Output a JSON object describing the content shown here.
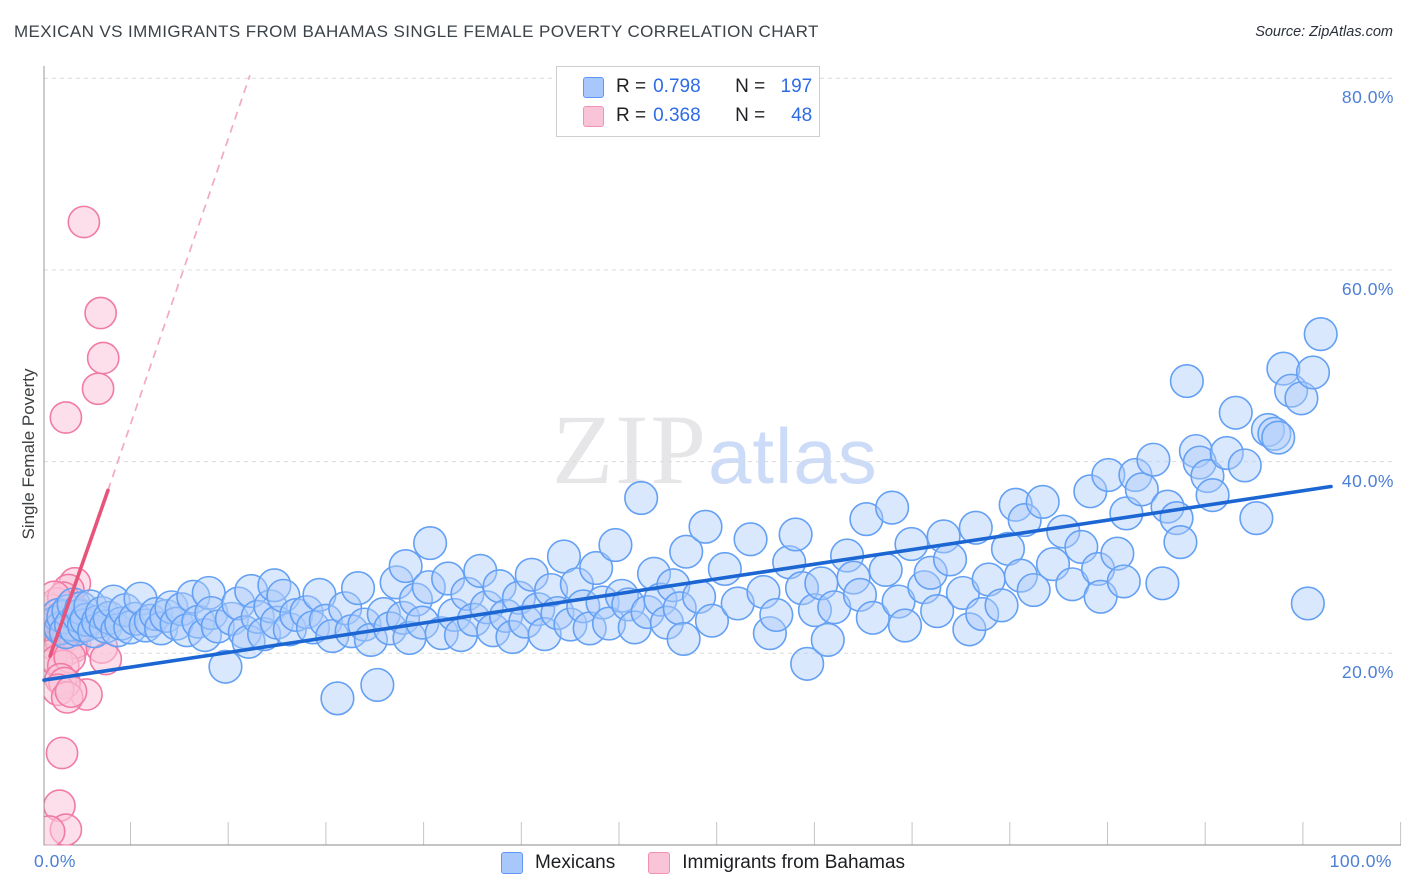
{
  "header": {
    "title": "MEXICAN VS IMMIGRANTS FROM BAHAMAS SINGLE FEMALE POVERTY CORRELATION CHART",
    "source": "Source: ZipAtlas.com"
  },
  "legend_box": {
    "rows": [
      {
        "series": "mexicans",
        "r_label": "R =",
        "r_value": "0.798",
        "n_label": "N =",
        "n_value": "197"
      },
      {
        "series": "bahamas",
        "r_label": "R =",
        "r_value": "0.368",
        "n_label": "N =",
        "n_value": "48"
      }
    ]
  },
  "watermark": {
    "part1": "ZIP",
    "part2": "atlas"
  },
  "axes": {
    "y_title": "Single Female Poverty",
    "y_ticks": [
      {
        "label": "80.0%",
        "value": 80
      },
      {
        "label": "60.0%",
        "value": 60
      },
      {
        "label": "40.0%",
        "value": 40
      },
      {
        "label": "20.0%",
        "value": 20
      }
    ],
    "x_tick_left": {
      "label": "0.0%",
      "value": 0
    },
    "x_tick_right": {
      "label": "100.0%",
      "value": 100
    }
  },
  "bottom_legend": [
    {
      "series": "mexicans",
      "label": "Mexicans"
    },
    {
      "series": "bahamas",
      "label": "Immigrants from Bahamas"
    }
  ],
  "colors": {
    "blue_point_stroke": "#64a0f4",
    "blue_point_fill": "rgba(174,203,250,0.45)",
    "pink_point_stroke": "#f17ba5",
    "pink_point_fill": "rgba(249,196,216,0.55)",
    "blue_trend": "#1b66d2",
    "pink_trend": "#e8537a",
    "pink_trend_dashed": "#f3a9bf",
    "gridline": "#dcdcdc",
    "axis_line": "#9a9a9a",
    "tick_label_blue": "#4c7fd6"
  },
  "chart_data": {
    "type": "scatter",
    "title": "Mexican vs Immigrants from Bahamas Single Female Poverty",
    "xlabel": "",
    "ylabel": "Single Female Poverty",
    "x_unit": "%",
    "y_unit": "%",
    "xlim": [
      0,
      105.5
    ],
    "ylim": [
      0,
      81.5
    ],
    "grid": "horizontal-dashed",
    "legend_position": "bottom-center",
    "series": [
      {
        "name": "Mexicans",
        "R": 0.798,
        "N": 197,
        "trend_solid": {
          "x0": 0,
          "y0": 17.2,
          "x1": 100,
          "y1": 37.4
        },
        "points": [
          [
            0.9,
            23.2
          ],
          [
            1.1,
            24.0
          ],
          [
            1.3,
            22.6
          ],
          [
            1.5,
            23.8
          ],
          [
            1.7,
            22.2
          ],
          [
            1.9,
            24.4
          ],
          [
            2.1,
            23.0
          ],
          [
            2.3,
            25.1
          ],
          [
            2.5,
            22.5
          ],
          [
            2.7,
            23.9
          ],
          [
            2.9,
            24.7
          ],
          [
            3.1,
            22.9
          ],
          [
            3.3,
            23.5
          ],
          [
            3.6,
            24.9
          ],
          [
            3.9,
            22.3
          ],
          [
            4.2,
            23.3
          ],
          [
            4.5,
            24.2
          ],
          [
            4.8,
            22.8
          ],
          [
            5.1,
            23.7
          ],
          [
            5.4,
            25.4
          ],
          [
            5.7,
            22.4
          ],
          [
            6.0,
            23.1
          ],
          [
            6.3,
            24.5
          ],
          [
            6.7,
            22.7
          ],
          [
            7.1,
            23.6
          ],
          [
            7.5,
            25.7
          ],
          [
            7.9,
            22.9
          ],
          [
            8.3,
            23.4
          ],
          [
            8.7,
            24.1
          ],
          [
            9.1,
            22.6
          ],
          [
            9.5,
            23.9
          ],
          [
            9.9,
            24.8
          ],
          [
            10.3,
            23.1
          ],
          [
            10.7,
            24.6
          ],
          [
            11.1,
            22.4
          ],
          [
            11.6,
            25.9
          ],
          [
            12.0,
            23.3
          ],
          [
            12.5,
            21.9
          ],
          [
            12.8,
            26.3
          ],
          [
            13.0,
            24.2
          ],
          [
            13.5,
            22.8
          ],
          [
            14.1,
            18.6
          ],
          [
            14.6,
            23.6
          ],
          [
            15.1,
            25.2
          ],
          [
            15.6,
            22.2
          ],
          [
            15.9,
            21.2
          ],
          [
            16.1,
            26.5
          ],
          [
            16.6,
            23.8
          ],
          [
            17.1,
            22.0
          ],
          [
            17.6,
            24.9
          ],
          [
            17.9,
            27.1
          ],
          [
            18.1,
            23.2
          ],
          [
            18.6,
            26.0
          ],
          [
            19.1,
            22.5
          ],
          [
            19.6,
            24.0
          ],
          [
            20.4,
            24.3
          ],
          [
            20.9,
            22.7
          ],
          [
            21.4,
            26.1
          ],
          [
            21.9,
            23.4
          ],
          [
            22.4,
            21.8
          ],
          [
            22.8,
            15.3
          ],
          [
            23.4,
            24.7
          ],
          [
            23.9,
            22.3
          ],
          [
            24.4,
            26.8
          ],
          [
            24.9,
            23.0
          ],
          [
            25.4,
            21.4
          ],
          [
            25.9,
            16.7
          ],
          [
            26.4,
            24.1
          ],
          [
            26.9,
            22.6
          ],
          [
            27.4,
            27.4
          ],
          [
            27.9,
            23.7
          ],
          [
            28.1,
            29.1
          ],
          [
            28.4,
            21.6
          ],
          [
            28.9,
            25.6
          ],
          [
            29.4,
            23.2
          ],
          [
            29.9,
            26.9
          ],
          [
            30.0,
            31.5
          ],
          [
            30.9,
            22.1
          ],
          [
            31.4,
            27.8
          ],
          [
            31.9,
            24.0
          ],
          [
            32.4,
            21.9
          ],
          [
            32.9,
            26.2
          ],
          [
            33.4,
            23.5
          ],
          [
            33.9,
            28.6
          ],
          [
            34.4,
            24.8
          ],
          [
            34.9,
            22.4
          ],
          [
            35.4,
            27.0
          ],
          [
            35.9,
            23.9
          ],
          [
            36.4,
            21.7
          ],
          [
            36.9,
            25.8
          ],
          [
            37.4,
            23.3
          ],
          [
            37.9,
            28.2
          ],
          [
            38.4,
            24.6
          ],
          [
            38.9,
            22.0
          ],
          [
            39.4,
            26.6
          ],
          [
            39.9,
            24.2
          ],
          [
            40.4,
            30.1
          ],
          [
            40.9,
            23.0
          ],
          [
            41.4,
            27.2
          ],
          [
            41.9,
            24.9
          ],
          [
            42.4,
            22.6
          ],
          [
            42.9,
            28.9
          ],
          [
            43.4,
            25.3
          ],
          [
            43.9,
            23.1
          ],
          [
            44.4,
            31.3
          ],
          [
            44.9,
            26.0
          ],
          [
            45.4,
            25.1
          ],
          [
            45.9,
            22.7
          ],
          [
            46.4,
            36.2
          ],
          [
            46.9,
            24.3
          ],
          [
            47.4,
            28.3
          ],
          [
            47.9,
            25.6
          ],
          [
            48.4,
            23.2
          ],
          [
            48.9,
            27.1
          ],
          [
            49.4,
            24.7
          ],
          [
            49.7,
            21.5
          ],
          [
            49.9,
            30.6
          ],
          [
            50.9,
            25.9
          ],
          [
            51.4,
            33.2
          ],
          [
            51.9,
            23.4
          ],
          [
            52.9,
            28.8
          ],
          [
            53.9,
            25.2
          ],
          [
            54.9,
            31.9
          ],
          [
            55.9,
            26.4
          ],
          [
            56.4,
            22.1
          ],
          [
            56.9,
            24.0
          ],
          [
            57.9,
            29.5
          ],
          [
            58.4,
            32.4
          ],
          [
            58.9,
            26.8
          ],
          [
            59.3,
            18.9
          ],
          [
            59.9,
            24.5
          ],
          [
            60.4,
            27.3
          ],
          [
            60.9,
            21.4
          ],
          [
            61.4,
            24.8
          ],
          [
            62.4,
            30.2
          ],
          [
            62.9,
            27.9
          ],
          [
            63.4,
            26.1
          ],
          [
            63.9,
            34.0
          ],
          [
            64.4,
            23.7
          ],
          [
            65.4,
            28.7
          ],
          [
            65.9,
            35.2
          ],
          [
            66.4,
            25.4
          ],
          [
            66.9,
            22.9
          ],
          [
            67.4,
            31.4
          ],
          [
            68.4,
            26.9
          ],
          [
            68.9,
            28.4
          ],
          [
            69.4,
            24.4
          ],
          [
            69.9,
            32.2
          ],
          [
            70.4,
            29.8
          ],
          [
            71.4,
            26.3
          ],
          [
            71.9,
            22.5
          ],
          [
            72.4,
            33.1
          ],
          [
            72.9,
            24.1
          ],
          [
            73.4,
            27.7
          ],
          [
            74.4,
            25.0
          ],
          [
            74.9,
            30.9
          ],
          [
            75.5,
            35.5
          ],
          [
            75.9,
            28.1
          ],
          [
            76.2,
            33.9
          ],
          [
            76.9,
            26.6
          ],
          [
            77.6,
            35.8
          ],
          [
            78.4,
            29.3
          ],
          [
            79.2,
            32.7
          ],
          [
            79.9,
            27.2
          ],
          [
            80.6,
            31.1
          ],
          [
            81.3,
            36.9
          ],
          [
            81.9,
            28.8
          ],
          [
            82.1,
            25.9
          ],
          [
            82.7,
            38.6
          ],
          [
            83.4,
            30.4
          ],
          [
            83.9,
            27.5
          ],
          [
            84.1,
            34.6
          ],
          [
            84.8,
            38.6
          ],
          [
            85.3,
            37.1
          ],
          [
            86.2,
            40.2
          ],
          [
            86.9,
            27.3
          ],
          [
            87.3,
            35.3
          ],
          [
            88.0,
            34.1
          ],
          [
            88.3,
            31.6
          ],
          [
            88.8,
            48.4
          ],
          [
            89.5,
            41.1
          ],
          [
            89.8,
            39.9
          ],
          [
            90.4,
            38.5
          ],
          [
            90.8,
            36.5
          ],
          [
            91.9,
            40.9
          ],
          [
            92.6,
            45.1
          ],
          [
            93.3,
            39.6
          ],
          [
            94.2,
            34.1
          ],
          [
            95.1,
            43.3
          ],
          [
            95.6,
            42.9
          ],
          [
            95.9,
            42.5
          ],
          [
            96.3,
            49.7
          ],
          [
            96.9,
            47.4
          ],
          [
            97.7,
            46.6
          ],
          [
            98.2,
            25.2
          ],
          [
            98.6,
            49.3
          ],
          [
            99.2,
            53.3
          ]
        ]
      },
      {
        "name": "Immigrants from Bahamas",
        "R": 0.368,
        "N": 48,
        "trend_solid": {
          "x0": 0.47,
          "y0": 19.7,
          "x1": 4.97,
          "y1": 37.0
        },
        "trend_dashed_extension": {
          "x0": 4.97,
          "y0": 37.0,
          "x1": 16.0,
          "y1": 80.3
        },
        "points": [
          [
            3.1,
            65.0
          ],
          [
            4.4,
            55.5
          ],
          [
            4.6,
            50.8
          ],
          [
            4.2,
            47.6
          ],
          [
            1.7,
            44.6
          ],
          [
            2.4,
            27.3
          ],
          [
            1.9,
            26.6
          ],
          [
            0.3,
            22.4
          ],
          [
            0.4,
            23.6
          ],
          [
            0.5,
            21.8
          ],
          [
            0.6,
            24.5
          ],
          [
            0.7,
            22.9
          ],
          [
            0.8,
            20.9
          ],
          [
            0.9,
            23.3
          ],
          [
            1.0,
            25.2
          ],
          [
            1.1,
            22.1
          ],
          [
            1.2,
            24.1
          ],
          [
            1.3,
            21.3
          ],
          [
            1.4,
            23.0
          ],
          [
            1.5,
            25.8
          ],
          [
            1.6,
            22.6
          ],
          [
            1.7,
            20.3
          ],
          [
            1.8,
            23.9
          ],
          [
            1.9,
            21.9
          ],
          [
            2.0,
            24.8
          ],
          [
            2.1,
            22.3
          ],
          [
            2.2,
            20.6
          ],
          [
            2.3,
            23.5
          ],
          [
            2.4,
            21.1
          ],
          [
            2.5,
            24.3
          ],
          [
            2.6,
            22.8
          ],
          [
            0.6,
            19.8
          ],
          [
            1.0,
            19.2
          ],
          [
            1.5,
            18.7
          ],
          [
            2.0,
            19.6
          ],
          [
            0.8,
            25.9
          ],
          [
            4.5,
            20.6
          ],
          [
            4.8,
            19.4
          ],
          [
            3.3,
            15.7
          ],
          [
            1.3,
            17.3
          ],
          [
            1.6,
            16.9
          ],
          [
            1.1,
            16.2
          ],
          [
            1.8,
            15.4
          ],
          [
            2.1,
            16.0
          ],
          [
            1.4,
            9.6
          ],
          [
            1.2,
            4.1
          ],
          [
            1.7,
            1.6
          ],
          [
            0.4,
            1.4
          ]
        ]
      }
    ]
  }
}
